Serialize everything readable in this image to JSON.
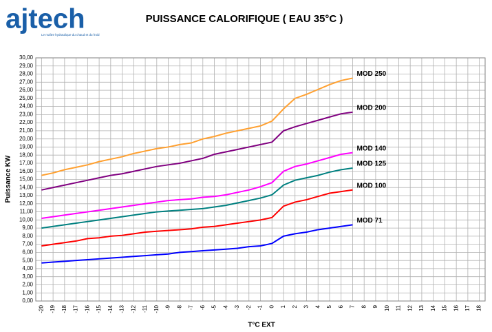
{
  "logo": {
    "name": "ajtech",
    "tagline": "Le maître hydraulique du chaud et du froid"
  },
  "chart_data": {
    "type": "line",
    "title": "PUISSANCE CALORIFIQUE ( EAU 35°C )",
    "x_label": "T°C EXT",
    "y_label": "Puissance KW",
    "x": [
      -20,
      -19,
      -18,
      -17,
      -16,
      -15,
      -14,
      -13,
      -12,
      -11,
      -10,
      -9,
      -8,
      -7,
      -6,
      -5,
      -4,
      -3,
      -2,
      -1,
      0,
      1,
      2,
      3,
      4,
      5,
      6,
      7
    ],
    "xlim": [
      -20.5,
      18.5
    ],
    "xticks": [
      -20,
      -19,
      -18,
      -17,
      -16,
      -15,
      -14,
      -13,
      -12,
      -11,
      -10,
      -9,
      -8,
      -7,
      -6,
      -5,
      -4,
      -3,
      -2,
      -1,
      0,
      1,
      2,
      3,
      4,
      5,
      6,
      7,
      8,
      9,
      10,
      11,
      12,
      13,
      14,
      15,
      16,
      17,
      18
    ],
    "ylim": [
      0,
      30
    ],
    "yticks": [
      {
        "value": 0,
        "label": "0,00"
      },
      {
        "value": 1,
        "label": "1,00"
      },
      {
        "value": 2,
        "label": "2,00"
      },
      {
        "value": 3,
        "label": "3,00"
      },
      {
        "value": 4,
        "label": "4,00"
      },
      {
        "value": 5,
        "label": "5,00"
      },
      {
        "value": 6,
        "label": "6,00"
      },
      {
        "value": 7,
        "label": "7,00"
      },
      {
        "value": 8,
        "label": "8,00"
      },
      {
        "value": 9,
        "label": "9,00"
      },
      {
        "value": 10,
        "label": "10,00"
      },
      {
        "value": 11,
        "label": "11,00"
      },
      {
        "value": 12,
        "label": "12,00"
      },
      {
        "value": 13,
        "label": "13,00"
      },
      {
        "value": 14,
        "label": "14,00"
      },
      {
        "value": 15,
        "label": "15,00"
      },
      {
        "value": 16,
        "label": "16,00"
      },
      {
        "value": 17,
        "label": "17,00"
      },
      {
        "value": 18,
        "label": "18,00"
      },
      {
        "value": 19,
        "label": "19,00"
      },
      {
        "value": 20,
        "label": "20,00"
      },
      {
        "value": 21,
        "label": "21,00"
      },
      {
        "value": 22,
        "label": "22,00"
      },
      {
        "value": 23,
        "label": "23,00"
      },
      {
        "value": 24,
        "label": "24,00"
      },
      {
        "value": 25,
        "label": "25,00"
      },
      {
        "value": 26,
        "label": "26,00"
      },
      {
        "value": 27,
        "label": "27,00"
      },
      {
        "value": 28,
        "label": "28,00"
      },
      {
        "value": 29,
        "label": "29,00"
      },
      {
        "value": 30,
        "label": "30,00"
      }
    ],
    "grid": true,
    "series": [
      {
        "name": "MOD 250",
        "color": "#ffa030",
        "values": [
          15.5,
          15.8,
          16.2,
          16.5,
          16.8,
          17.2,
          17.5,
          17.8,
          18.2,
          18.5,
          18.8,
          19.0,
          19.3,
          19.5,
          20.0,
          20.3,
          20.7,
          21.0,
          21.3,
          21.6,
          22.2,
          23.7,
          25.0,
          25.5,
          26.1,
          26.7,
          27.2,
          27.5
        ]
      },
      {
        "name": "MOD 200",
        "color": "#800080",
        "values": [
          13.7,
          14.0,
          14.3,
          14.6,
          14.9,
          15.2,
          15.5,
          15.7,
          16.0,
          16.3,
          16.6,
          16.8,
          17.0,
          17.3,
          17.6,
          18.1,
          18.4,
          18.7,
          19.0,
          19.3,
          19.6,
          21.0,
          21.5,
          21.9,
          22.3,
          22.7,
          23.1,
          23.3
        ]
      },
      {
        "name": "MOD 140",
        "color": "#ff00ff",
        "values": [
          10.2,
          10.4,
          10.6,
          10.8,
          11.0,
          11.2,
          11.4,
          11.6,
          11.8,
          12.0,
          12.2,
          12.4,
          12.5,
          12.6,
          12.8,
          12.9,
          13.1,
          13.4,
          13.7,
          14.1,
          14.6,
          16.0,
          16.6,
          16.9,
          17.3,
          17.7,
          18.1,
          18.3
        ]
      },
      {
        "name": "MOD 125",
        "color": "#008080",
        "values": [
          9.0,
          9.2,
          9.4,
          9.6,
          9.8,
          10.0,
          10.2,
          10.4,
          10.6,
          10.8,
          11.0,
          11.1,
          11.2,
          11.3,
          11.4,
          11.6,
          11.8,
          12.1,
          12.4,
          12.7,
          13.1,
          14.3,
          14.9,
          15.2,
          15.5,
          15.9,
          16.2,
          16.4
        ]
      },
      {
        "name": "MOD 100",
        "color": "#ff0000",
        "values": [
          6.8,
          7.0,
          7.2,
          7.4,
          7.7,
          7.8,
          8.0,
          8.1,
          8.3,
          8.5,
          8.6,
          8.7,
          8.8,
          8.9,
          9.1,
          9.2,
          9.4,
          9.6,
          9.8,
          10.0,
          10.3,
          11.7,
          12.2,
          12.5,
          12.9,
          13.3,
          13.5,
          13.7
        ]
      },
      {
        "name": "MOD 71",
        "color": "#0000ff",
        "values": [
          4.7,
          4.8,
          4.9,
          5.0,
          5.1,
          5.2,
          5.3,
          5.4,
          5.5,
          5.6,
          5.7,
          5.8,
          6.0,
          6.1,
          6.2,
          6.3,
          6.4,
          6.5,
          6.7,
          6.8,
          7.1,
          8.0,
          8.3,
          8.5,
          8.8,
          9.0,
          9.2,
          9.4
        ]
      }
    ]
  }
}
